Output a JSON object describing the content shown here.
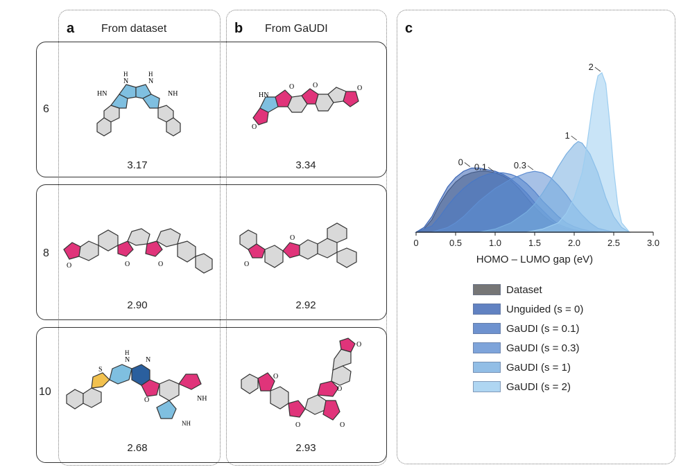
{
  "panels": {
    "a": {
      "letter": "a",
      "title": "From dataset"
    },
    "b": {
      "letter": "b",
      "title": "From GaUDI"
    },
    "c": {
      "letter": "c"
    }
  },
  "rows": [
    {
      "label": "6",
      "dataset_value": "3.17",
      "gaudi_value": "3.34"
    },
    {
      "label": "8",
      "dataset_value": "2.90",
      "gaudi_value": "2.92"
    },
    {
      "label": "10",
      "dataset_value": "2.68",
      "gaudi_value": "2.93"
    }
  ],
  "molecule_atoms": {
    "row1_a": [
      "HN",
      "H",
      "N",
      "H",
      "N",
      "NH"
    ],
    "row1_b": [
      "HN",
      "O",
      "O",
      "O",
      "O"
    ],
    "row2_a": [
      "O",
      "O",
      "O"
    ],
    "row2_b": [
      "O",
      "O"
    ],
    "row3_a": [
      "S",
      "H",
      "N",
      "N",
      "O",
      "NH",
      "NH"
    ],
    "row3_b": [
      "O",
      "O",
      "O",
      "O",
      "O"
    ]
  },
  "colors": {
    "carbon_ring": "#d9d9d9",
    "oxygen_ring": "#e0347a",
    "nitrogen_ring": "#7fbfe0",
    "dark_nitrogen_ring": "#2a5f9e",
    "sulfur_ring": "#f2c14e"
  },
  "chart_data": {
    "type": "area",
    "title": "",
    "xlabel": "HOMO – LUMO gap (eV)",
    "ylabel": "",
    "xlim": [
      0,
      3.0
    ],
    "xticks": [
      "0",
      "0.5",
      "1.0",
      "1.5",
      "2.0",
      "2.5",
      "3.0"
    ],
    "series": [
      {
        "name": "Dataset",
        "peak_label": "",
        "color": "#555555",
        "x": [
          0,
          0.1,
          0.2,
          0.3,
          0.4,
          0.5,
          0.6,
          0.7,
          0.8,
          0.9,
          1.0,
          1.1,
          1.2,
          1.3,
          1.4,
          1.5,
          1.6,
          1.7,
          1.8,
          1.9,
          2.0,
          2.1,
          2.2
        ],
        "y": [
          0,
          0.02,
          0.08,
          0.18,
          0.26,
          0.32,
          0.36,
          0.38,
          0.39,
          0.39,
          0.38,
          0.36,
          0.33,
          0.28,
          0.22,
          0.16,
          0.11,
          0.07,
          0.04,
          0.02,
          0.01,
          0.005,
          0
        ]
      },
      {
        "name": "Unguided (s = 0)",
        "peak_label": "0",
        "color": "#3a64b4",
        "x": [
          0,
          0.1,
          0.2,
          0.3,
          0.4,
          0.5,
          0.6,
          0.7,
          0.8,
          0.9,
          1.0,
          1.1,
          1.2,
          1.3,
          1.4,
          1.5,
          1.6,
          1.7,
          1.8,
          1.9,
          2.0,
          2.1,
          2.2,
          2.3
        ],
        "y": [
          0,
          0.03,
          0.1,
          0.2,
          0.29,
          0.35,
          0.39,
          0.41,
          0.41,
          0.4,
          0.39,
          0.37,
          0.34,
          0.3,
          0.25,
          0.19,
          0.14,
          0.09,
          0.05,
          0.03,
          0.015,
          0.006,
          0.002,
          0
        ]
      },
      {
        "name": "GaUDI (s = 0.1)",
        "peak_label": "0.1",
        "color": "#4a78c4",
        "x": [
          0,
          0.2,
          0.3,
          0.4,
          0.5,
          0.6,
          0.7,
          0.8,
          0.9,
          1.0,
          1.1,
          1.2,
          1.3,
          1.4,
          1.5,
          1.6,
          1.7,
          1.8,
          1.9,
          2.0,
          2.1,
          2.2,
          2.4
        ],
        "y": [
          0,
          0.04,
          0.1,
          0.17,
          0.23,
          0.28,
          0.32,
          0.35,
          0.37,
          0.38,
          0.38,
          0.37,
          0.35,
          0.31,
          0.26,
          0.2,
          0.15,
          0.1,
          0.06,
          0.035,
          0.018,
          0.008,
          0
        ]
      },
      {
        "name": "GaUDI (s = 0.3)",
        "peak_label": "0.3",
        "color": "#5f8ed2",
        "x": [
          0.2,
          0.4,
          0.5,
          0.6,
          0.7,
          0.8,
          0.9,
          1.0,
          1.1,
          1.2,
          1.3,
          1.4,
          1.5,
          1.6,
          1.7,
          1.8,
          1.9,
          2.0,
          2.1,
          2.2,
          2.3,
          2.5
        ],
        "y": [
          0,
          0.03,
          0.06,
          0.1,
          0.15,
          0.2,
          0.24,
          0.28,
          0.31,
          0.34,
          0.36,
          0.38,
          0.39,
          0.38,
          0.35,
          0.3,
          0.24,
          0.17,
          0.11,
          0.06,
          0.025,
          0
        ]
      },
      {
        "name": "GaUDI (s = 1)",
        "peak_label": "1",
        "color": "#78aee0",
        "x": [
          0.8,
          1.0,
          1.2,
          1.4,
          1.5,
          1.6,
          1.7,
          1.8,
          1.9,
          2.0,
          2.05,
          2.1,
          2.2,
          2.3,
          2.4,
          2.5,
          2.6,
          2.7
        ],
        "y": [
          0,
          0.02,
          0.06,
          0.13,
          0.18,
          0.25,
          0.33,
          0.42,
          0.5,
          0.56,
          0.58,
          0.57,
          0.5,
          0.38,
          0.22,
          0.1,
          0.03,
          0
        ]
      },
      {
        "name": "GaUDI (s = 2)",
        "peak_label": "2",
        "color": "#9ccdf0",
        "x": [
          1.4,
          1.6,
          1.8,
          1.9,
          2.0,
          2.1,
          2.15,
          2.2,
          2.25,
          2.3,
          2.35,
          2.4,
          2.45,
          2.5,
          2.55,
          2.6,
          2.7
        ],
        "y": [
          0,
          0.02,
          0.06,
          0.12,
          0.22,
          0.38,
          0.52,
          0.7,
          0.88,
          1.0,
          1.02,
          0.95,
          0.7,
          0.4,
          0.18,
          0.06,
          0
        ]
      }
    ],
    "legend": [
      "Dataset",
      "Unguided (s = 0)",
      "GaUDI (s = 0.1)",
      "GaUDI (s = 0.3)",
      "GaUDI (s = 1)",
      "GaUDI (s = 2)"
    ]
  }
}
